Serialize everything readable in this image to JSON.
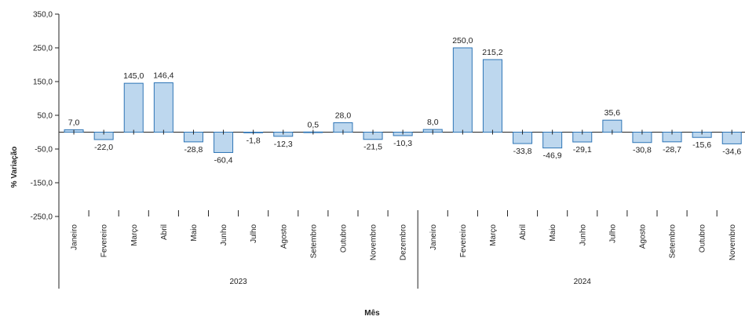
{
  "chart_data": {
    "type": "bar",
    "xlabel": "Mês",
    "ylabel": "% Variação",
    "ylim": [
      -250,
      350
    ],
    "yticks": [
      "350,0",
      "250,0",
      "150,0",
      "50,0",
      "-50,0",
      "-150,0",
      "-250,0"
    ],
    "ytick_values": [
      350,
      250,
      150,
      50,
      -50,
      -150,
      -250
    ],
    "groups": [
      {
        "label": "2023",
        "categories": [
          "Janeiro",
          "Fevereiro",
          "Março",
          "Abril",
          "Maio",
          "Junho",
          "Julho",
          "Agosto",
          "Setembro",
          "Outubro",
          "Novembro",
          "Dezembro"
        ],
        "values": [
          7.0,
          -22.0,
          145.0,
          146.4,
          -28.8,
          -60.4,
          -1.8,
          -12.3,
          0.5,
          28.0,
          -21.5,
          -10.3
        ],
        "labels": [
          "7,0",
          "-22,0",
          "145,0",
          "146,4",
          "-28,8",
          "-60,4",
          "-1,8",
          "-12,3",
          "0,5",
          "28,0",
          "-21,5",
          "-10,3"
        ]
      },
      {
        "label": "2024",
        "categories": [
          "Janeiro",
          "Fevereiro",
          "Março",
          "Abril",
          "Maio",
          "Junho",
          "Julho",
          "Agosto",
          "Setembro",
          "Outubro",
          "Novembro"
        ],
        "values": [
          8.0,
          250.0,
          215.2,
          -33.8,
          -46.9,
          -29.1,
          35.6,
          -30.8,
          -28.7,
          -15.6,
          -34.6
        ],
        "labels": [
          "8,0",
          "250,0",
          "215,2",
          "-33,8",
          "-46,9",
          "-29,1",
          "35,6",
          "-30,8",
          "-28,7",
          "-15,6",
          "-34,6"
        ]
      }
    ],
    "colors": {
      "bar_fill": "#bdd7ee",
      "bar_stroke": "#2e75b6",
      "axis": "#222222"
    },
    "grid": false,
    "legend": "none"
  }
}
